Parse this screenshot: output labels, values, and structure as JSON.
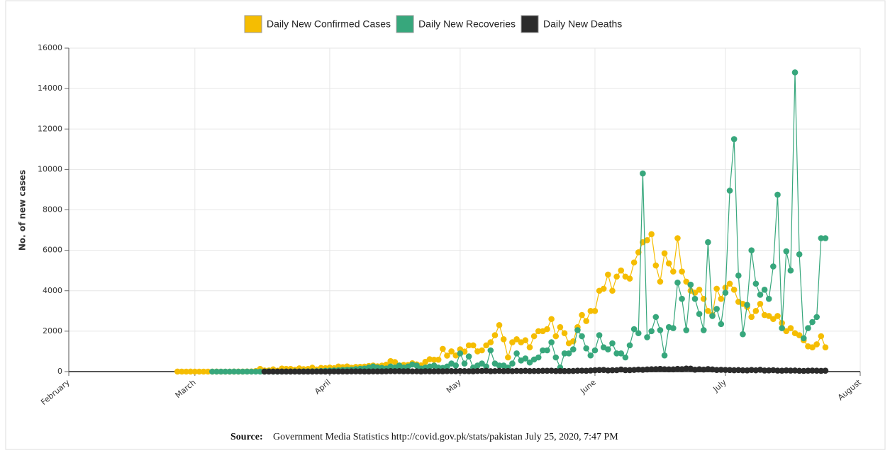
{
  "chart_data": {
    "type": "line",
    "y_label": "No. of new cases",
    "source_label": "Source:",
    "source_text": "Government Media Statistics http://covid.gov.pk/stats/pakistan July 25, 2020, 7:47 PM",
    "xlim": [
      0,
      182
    ],
    "xticks": [
      {
        "value": 0,
        "label": "February"
      },
      {
        "value": 29,
        "label": "March"
      },
      {
        "value": 60,
        "label": "April"
      },
      {
        "value": 90,
        "label": "May"
      },
      {
        "value": 121,
        "label": "June"
      },
      {
        "value": 151,
        "label": "July"
      },
      {
        "value": 182,
        "label": "August"
      }
    ],
    "ylim": [
      0,
      16000
    ],
    "yticks": [
      0,
      2000,
      4000,
      6000,
      8000,
      10000,
      12000,
      14000,
      16000
    ],
    "grid": true,
    "legend": "top",
    "x_start": 25,
    "series": [
      {
        "name": "Daily New Confirmed Cases",
        "color": "#f5bd02",
        "values": [
          2,
          0,
          0,
          2,
          0,
          0,
          0,
          0,
          0,
          1,
          0,
          0,
          0,
          1,
          1,
          1,
          7,
          5,
          31,
          136,
          53,
          57,
          110,
          48,
          150,
          135,
          133,
          91,
          160,
          121,
          128,
          193,
          104,
          180,
          170,
          200,
          171,
          253,
          222,
          257,
          191,
          232,
          236,
          248,
          277,
          300,
          261,
          296,
          342,
          520,
          471,
          303,
          331,
          327,
          412,
          359,
          310,
          485,
          612,
          589,
          590,
          1124,
          790,
          1000,
          800,
          1100,
          990,
          1300,
          1300,
          1000,
          1050,
          1300,
          1450,
          1800,
          2300,
          1600,
          700,
          1450,
          1600,
          1450,
          1550,
          1200,
          1750,
          2000,
          2000,
          2100,
          2600,
          1750,
          2200,
          1900,
          1400,
          1500,
          2200,
          2800,
          2500,
          3000,
          3000,
          4000,
          4100,
          4800,
          4000,
          4700,
          5000,
          4700,
          4600,
          5400,
          5900,
          6400,
          6500,
          6800,
          5250,
          4450,
          5850,
          5350,
          4950,
          6600,
          4950,
          4450,
          4000,
          3900,
          4050,
          3600,
          3000,
          2800,
          4100,
          3600,
          4150,
          4350,
          4050,
          3450,
          3350,
          3200,
          2700,
          3000,
          3350,
          2800,
          2750,
          2600,
          2750,
          2400,
          2000,
          2150,
          1900,
          1800,
          1550,
          1250,
          1200,
          1350,
          1750,
          1200
        ]
      },
      {
        "name": "Daily New Recoveries",
        "color": "#37a77c",
        "values": [
          null,
          null,
          null,
          null,
          null,
          null,
          null,
          null,
          0,
          0,
          0,
          0,
          0,
          1,
          0,
          0,
          2,
          0,
          0,
          0,
          0,
          10,
          0,
          0,
          5,
          5,
          5,
          10,
          5,
          10,
          10,
          15,
          20,
          30,
          40,
          50,
          60,
          70,
          80,
          90,
          100,
          120,
          140,
          150,
          200,
          250,
          200,
          180,
          150,
          250,
          200,
          300,
          200,
          250,
          350,
          300,
          150,
          200,
          250,
          300,
          200,
          180,
          250,
          400,
          300,
          900,
          400,
          750,
          200,
          300,
          400,
          250,
          1050,
          400,
          300,
          300,
          200,
          400,
          900,
          550,
          650,
          450,
          600,
          700,
          1050,
          1050,
          1450,
          700,
          200,
          900,
          900,
          1100,
          2050,
          1750,
          1150,
          800,
          1050,
          1800,
          1200,
          1100,
          1400,
          900,
          900,
          700,
          1300,
          2100,
          1900,
          9800,
          1700,
          2000,
          2700,
          2050,
          800,
          2200,
          2150,
          4400,
          3600,
          2050,
          4300,
          3600,
          2850,
          2050,
          6400,
          2750,
          3100,
          2350,
          3900,
          8950,
          11500,
          4750,
          1850,
          3300,
          6000,
          4350,
          3800,
          4050,
          3600,
          5200,
          8750,
          2150,
          5950,
          5000,
          14800,
          5800,
          1650,
          2150,
          2450,
          2700,
          6600,
          6600
        ]
      },
      {
        "name": "Daily New Deaths",
        "color": "#2b2b2b",
        "values": [
          null,
          null,
          null,
          null,
          null,
          null,
          null,
          null,
          null,
          null,
          null,
          null,
          null,
          null,
          null,
          null,
          null,
          null,
          null,
          null,
          1,
          0,
          1,
          1,
          2,
          1,
          3,
          1,
          2,
          3,
          1,
          2,
          4,
          6,
          1,
          6,
          8,
          5,
          7,
          4,
          11,
          10,
          10,
          6,
          6,
          9,
          10,
          10,
          14,
          23,
          20,
          23,
          16,
          20,
          13,
          17,
          6,
          19,
          15,
          15,
          17,
          14,
          22,
          24,
          20,
          30,
          25,
          20,
          15,
          30,
          32,
          40,
          20,
          26,
          38,
          24,
          31,
          22,
          38,
          30,
          40,
          28,
          30,
          32,
          40,
          42,
          46,
          28,
          32,
          28,
          30,
          33,
          46,
          48,
          41,
          55,
          67,
          78,
          82,
          57,
          68,
          70,
          105,
          72,
          71,
          83,
          101,
          88,
          107,
          115,
          119,
          136,
          118,
          113,
          110,
          136,
          119,
          153,
          148,
          95,
          118,
          101,
          125,
          108,
          80,
          89,
          83,
          78,
          68,
          75,
          62,
          60,
          80,
          65,
          90,
          55,
          60,
          70,
          50,
          45,
          60,
          50,
          53,
          40,
          35,
          45,
          50,
          45,
          38,
          45
        ]
      }
    ]
  }
}
